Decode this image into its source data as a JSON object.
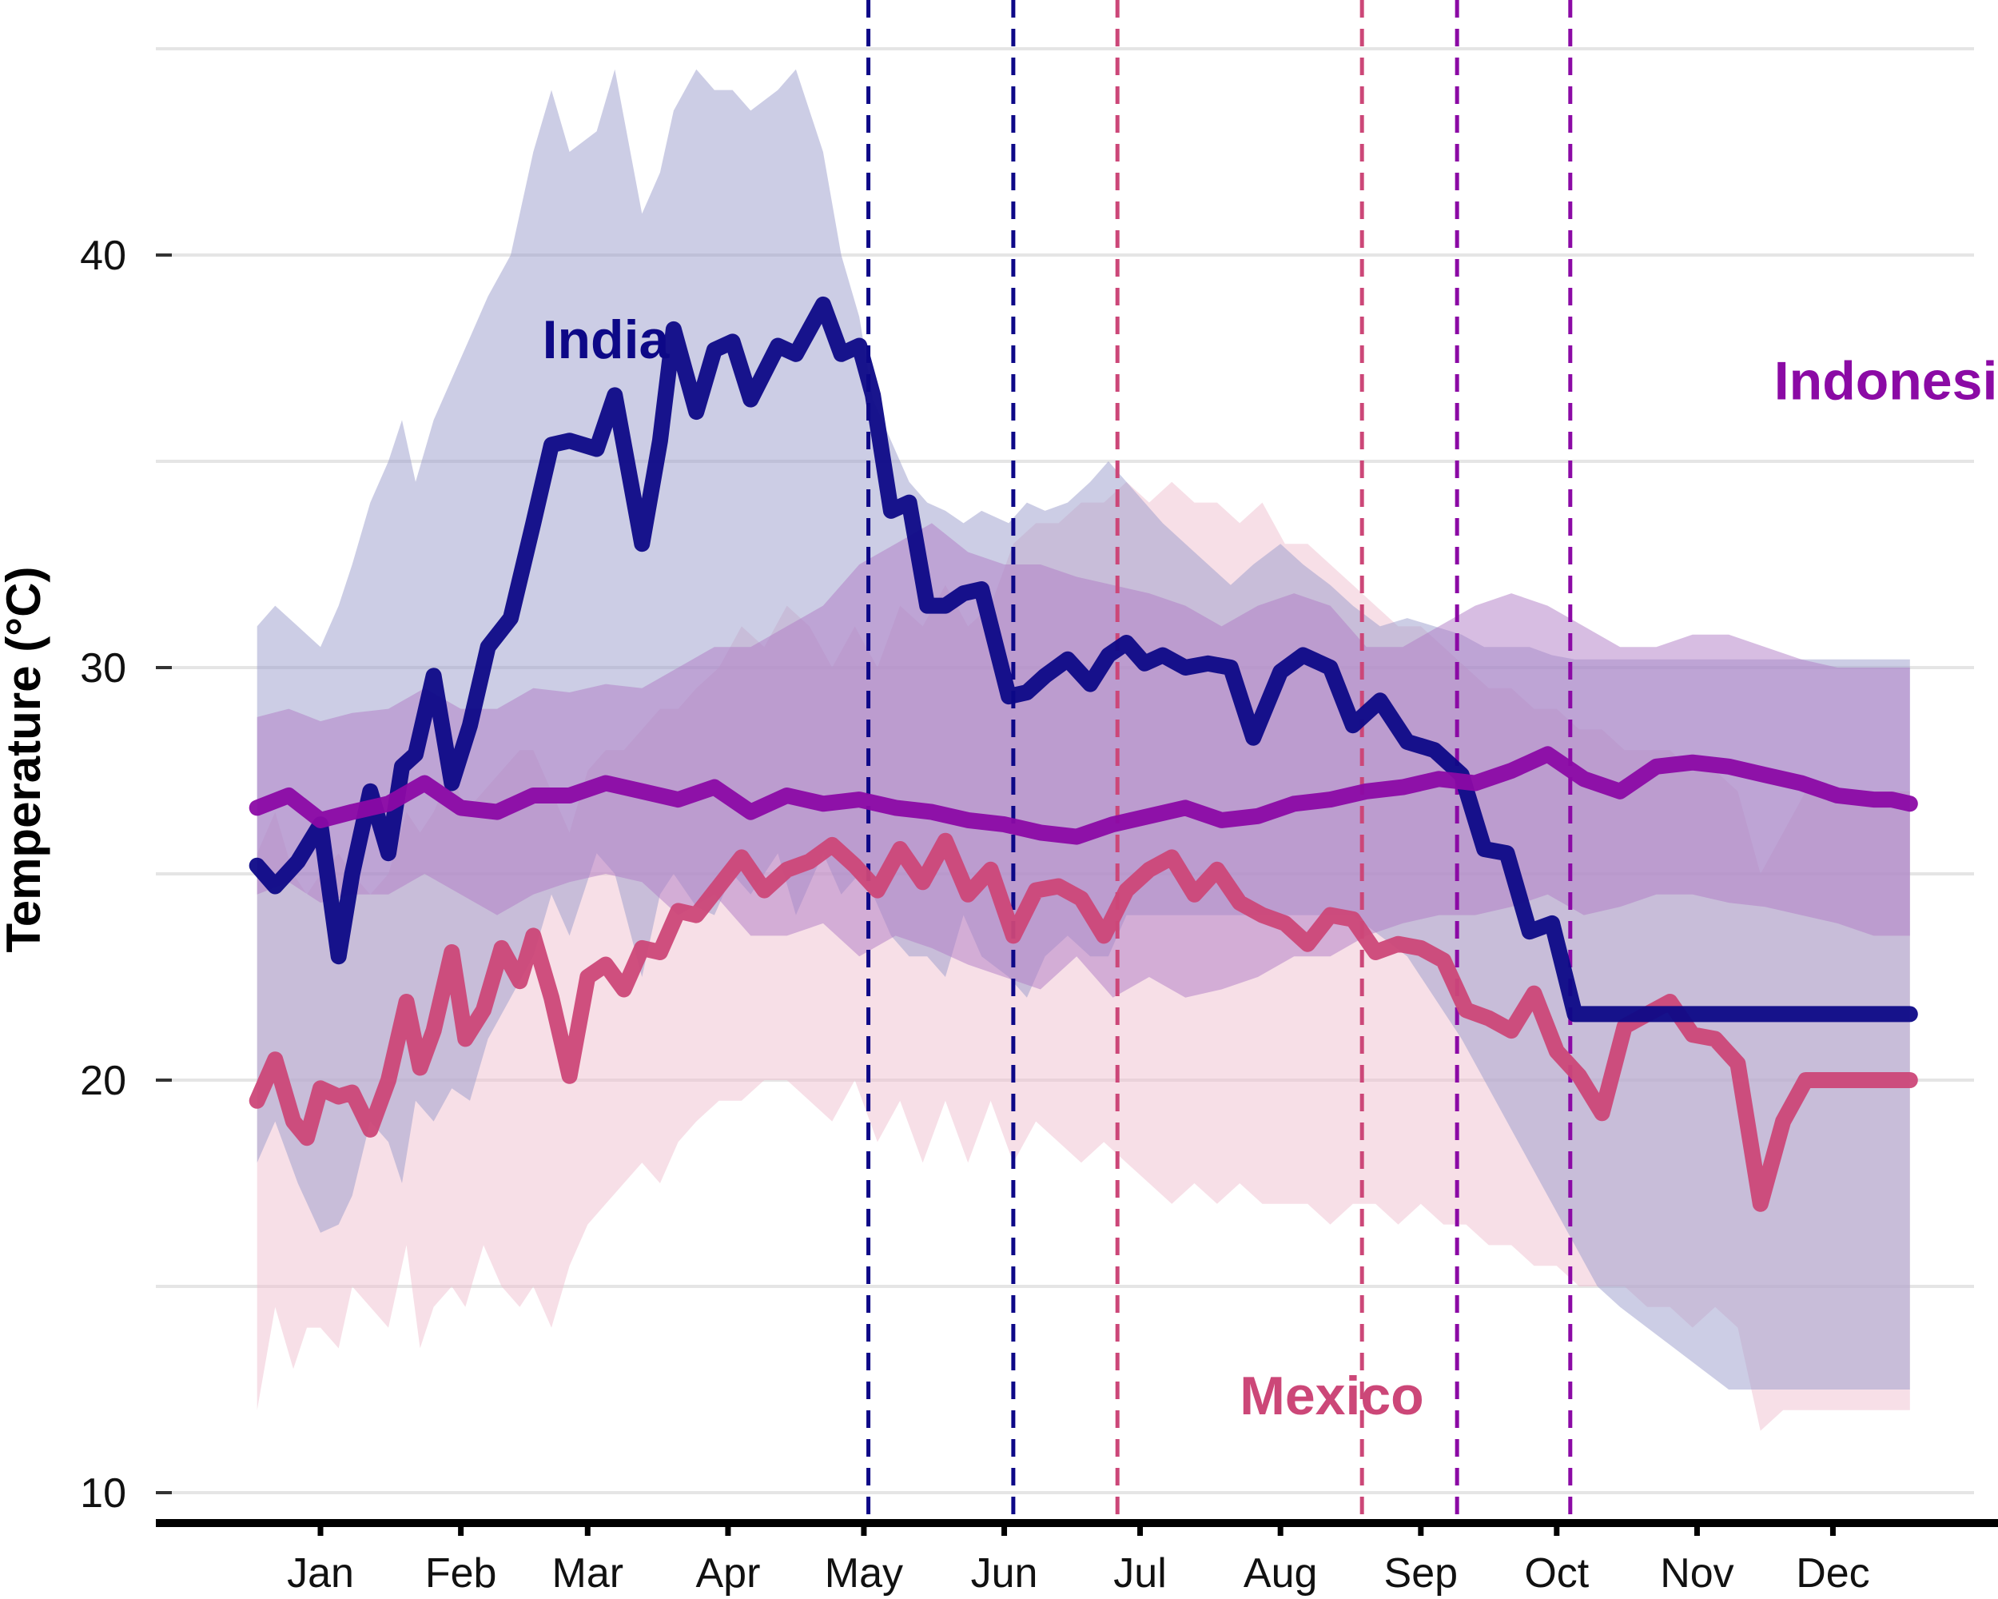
{
  "chart_data": {
    "type": "line",
    "ylabel": "Temperature (°C)",
    "xlabel": "",
    "ylim": [
      9.2,
      46
    ],
    "xlim": [
      0,
      366
    ],
    "yticks": [
      10,
      20,
      30,
      40
    ],
    "grid": "horizontal",
    "legend": "direct labels",
    "month_ticks": [
      {
        "label": "Jan",
        "day": 15
      },
      {
        "label": "Feb",
        "day": 46
      },
      {
        "label": "Mar",
        "day": 74
      },
      {
        "label": "Apr",
        "day": 105
      },
      {
        "label": "May",
        "day": 135
      },
      {
        "label": "Jun",
        "day": 166
      },
      {
        "label": "Jul",
        "day": 196
      },
      {
        "label": "Aug",
        "day": 227
      },
      {
        "label": "Sep",
        "day": 258
      },
      {
        "label": "Oct",
        "day": 288
      },
      {
        "label": "Nov",
        "day": 319
      },
      {
        "label": "Dec",
        "day": 349
      }
    ],
    "series": [
      {
        "name": "India",
        "color": "#0d0887",
        "band_color": "#9a9bcc",
        "label_day": 64,
        "label_value": 37.5,
        "vlines_day": [
          136,
          168
        ],
        "x": [
          1,
          5,
          10,
          15,
          19,
          22,
          26,
          30,
          33,
          36,
          40,
          44,
          48,
          52,
          57,
          62,
          66,
          70,
          76,
          80,
          86,
          90,
          93,
          98,
          102,
          106,
          110,
          116,
          120,
          126,
          130,
          134,
          137,
          141,
          145,
          149,
          153,
          157,
          161,
          167,
          171,
          175,
          180,
          185,
          189,
          193,
          197,
          201,
          206,
          211,
          216,
          221,
          227,
          232,
          238,
          243,
          249,
          255,
          261,
          267,
          272,
          277,
          282,
          287,
          292,
          297,
          302,
          308,
          314,
          320,
          326,
          333,
          338,
          343,
          348,
          353,
          358,
          362,
          366
        ],
        "y": [
          25.2,
          24.7,
          25.3,
          26.2,
          23.0,
          25.0,
          27.0,
          25.5,
          27.6,
          27.9,
          29.8,
          27.2,
          28.6,
          30.5,
          31.2,
          33.5,
          35.4,
          35.5,
          35.3,
          36.6,
          33.0,
          35.5,
          38.2,
          36.2,
          37.7,
          37.9,
          36.5,
          37.8,
          37.6,
          38.8,
          37.6,
          37.8,
          36.6,
          33.8,
          34.0,
          31.5,
          31.5,
          31.8,
          31.9,
          29.3,
          29.4,
          29.8,
          30.2,
          29.6,
          30.3,
          30.6,
          30.1,
          30.3,
          30.0,
          30.1,
          30.0,
          28.3,
          29.9,
          30.3,
          30.0,
          28.6,
          29.2,
          28.2,
          28.0,
          27.4,
          25.6,
          25.5,
          23.6,
          23.8,
          21.6,
          21.6,
          21.6,
          21.6,
          21.6,
          21.6,
          21.6,
          21.6,
          21.6,
          21.6,
          21.6,
          21.6,
          21.6,
          21.6,
          21.6
        ],
        "low": [
          18.0,
          19.0,
          17.5,
          16.3,
          16.5,
          17.2,
          19.0,
          18.5,
          17.5,
          19.5,
          19.0,
          19.8,
          19.5,
          21.0,
          22.0,
          23.0,
          24.5,
          23.5,
          25.5,
          25.0,
          22.5,
          24.5,
          25.0,
          24.2,
          24.0,
          25.0,
          24.5,
          25.5,
          24.0,
          25.5,
          24.5,
          25.0,
          24.5,
          23.5,
          23.0,
          23.0,
          22.5,
          24.0,
          23.0,
          22.5,
          22.0,
          23.0,
          23.5,
          23.0,
          23.0,
          24.0,
          24.0,
          24.0,
          24.0,
          24.0,
          24.0,
          24.0,
          24.0,
          24.0,
          24.0,
          24.0,
          23.5,
          23.0,
          22.0,
          21.0,
          20.0,
          19.0,
          18.0,
          17.0,
          16.0,
          15.0,
          14.5,
          14.0,
          13.5,
          13.0,
          12.5,
          12.5,
          12.5,
          12.5,
          12.5,
          12.5,
          12.5,
          12.5,
          12.5
        ],
        "high": [
          31.0,
          31.5,
          31.0,
          30.5,
          31.5,
          32.5,
          34.0,
          35.0,
          36.0,
          34.5,
          36.0,
          37.0,
          38.0,
          39.0,
          40.0,
          42.5,
          44.0,
          42.5,
          43.0,
          44.5,
          41.0,
          42.0,
          43.5,
          44.5,
          44.0,
          44.0,
          43.5,
          44.0,
          44.5,
          42.5,
          40.0,
          38.5,
          36.5,
          35.5,
          34.5,
          34.0,
          33.8,
          33.5,
          33.8,
          33.5,
          34.0,
          33.8,
          34.0,
          34.5,
          35.0,
          34.5,
          34.0,
          33.5,
          33.0,
          32.5,
          32.0,
          32.5,
          33.0,
          32.5,
          32.0,
          31.5,
          31.0,
          31.2,
          31.0,
          30.8,
          30.5,
          30.5,
          30.5,
          30.3,
          30.2,
          30.2,
          30.2,
          30.2,
          30.2,
          30.2,
          30.2,
          30.2,
          30.2,
          30.2,
          30.2,
          30.2,
          30.2,
          30.2,
          30.2
        ]
      },
      {
        "name": "Indonesia",
        "color": "#8b0aa5",
        "band_color": "#b07cc6",
        "label_day": 336,
        "label_value": 36.5,
        "vlines_day": [
          266,
          291
        ],
        "x": [
          1,
          8,
          15,
          22,
          30,
          38,
          46,
          54,
          62,
          70,
          78,
          86,
          94,
          102,
          110,
          118,
          126,
          134,
          142,
          150,
          158,
          166,
          174,
          182,
          190,
          198,
          206,
          214,
          222,
          230,
          238,
          246,
          254,
          262,
          270,
          278,
          286,
          294,
          302,
          310,
          318,
          326,
          334,
          342,
          350,
          358,
          362,
          366
        ],
        "y": [
          26.6,
          26.9,
          26.3,
          26.5,
          26.7,
          27.2,
          26.6,
          26.5,
          26.9,
          26.9,
          27.2,
          27.0,
          26.8,
          27.1,
          26.5,
          26.9,
          26.7,
          26.8,
          26.6,
          26.5,
          26.3,
          26.2,
          26.0,
          25.9,
          26.2,
          26.4,
          26.6,
          26.3,
          26.4,
          26.7,
          26.8,
          27.0,
          27.1,
          27.3,
          27.2,
          27.5,
          27.9,
          27.3,
          27.0,
          27.6,
          27.7,
          27.6,
          27.4,
          27.2,
          26.9,
          26.8,
          26.8,
          26.7
        ],
        "low": [
          24.5,
          24.8,
          24.3,
          24.5,
          24.5,
          25.0,
          24.5,
          24.0,
          24.5,
          24.8,
          25.0,
          24.8,
          24.0,
          24.5,
          23.5,
          23.5,
          23.8,
          23.0,
          23.5,
          23.2,
          22.8,
          22.5,
          22.2,
          23.0,
          22.0,
          22.5,
          22.0,
          22.2,
          22.5,
          23.0,
          23.0,
          23.5,
          23.8,
          24.0,
          24.0,
          24.2,
          24.5,
          24.0,
          24.2,
          24.5,
          24.5,
          24.3,
          24.2,
          24.0,
          23.8,
          23.5,
          23.5,
          23.5
        ],
        "high": [
          28.8,
          29.0,
          28.7,
          28.9,
          29.0,
          29.5,
          29.0,
          29.0,
          29.5,
          29.4,
          29.6,
          29.5,
          30.0,
          30.5,
          30.5,
          31.0,
          31.5,
          32.5,
          33.0,
          33.5,
          32.8,
          32.5,
          32.5,
          32.2,
          32.0,
          31.8,
          31.5,
          31.0,
          31.5,
          31.8,
          31.5,
          30.5,
          30.5,
          31.0,
          31.5,
          31.8,
          31.5,
          31.0,
          30.5,
          30.5,
          30.8,
          30.8,
          30.5,
          30.2,
          30.0,
          30.0,
          30.0,
          30.0
        ]
      },
      {
        "name": "Mexico",
        "color": "#cc4778",
        "band_color": "#f0bfd0",
        "label_day": 218,
        "label_value": 11.9,
        "vlines_day": [
          191,
          245
        ],
        "x": [
          1,
          5,
          9,
          12,
          15,
          19,
          22,
          26,
          30,
          34,
          37,
          40,
          44,
          47,
          51,
          55,
          59,
          62,
          66,
          70,
          74,
          78,
          82,
          86,
          90,
          94,
          98,
          103,
          108,
          113,
          118,
          123,
          128,
          133,
          138,
          143,
          148,
          153,
          158,
          163,
          168,
          173,
          178,
          183,
          188,
          193,
          198,
          203,
          208,
          213,
          218,
          223,
          228,
          233,
          238,
          243,
          248,
          253,
          258,
          263,
          268,
          273,
          278,
          283,
          288,
          293,
          298,
          303,
          308,
          313,
          318,
          323,
          328,
          333,
          338,
          343,
          348,
          353,
          357,
          361,
          366
        ],
        "y": [
          19.5,
          20.5,
          19.0,
          18.6,
          19.8,
          19.6,
          19.7,
          18.8,
          20.0,
          21.9,
          20.3,
          21.2,
          23.1,
          21.0,
          21.7,
          23.2,
          22.4,
          23.5,
          22.0,
          20.1,
          22.5,
          22.8,
          22.2,
          23.2,
          23.1,
          24.1,
          24.0,
          24.7,
          25.4,
          24.6,
          25.1,
          25.3,
          25.7,
          25.2,
          24.6,
          25.6,
          24.8,
          25.8,
          24.5,
          25.1,
          23.5,
          24.6,
          24.7,
          24.4,
          23.5,
          24.6,
          25.1,
          25.4,
          24.5,
          25.1,
          24.3,
          24.0,
          23.8,
          23.3,
          24.0,
          23.9,
          23.1,
          23.3,
          23.2,
          22.9,
          21.7,
          21.5,
          21.2,
          22.1,
          20.7,
          20.1,
          19.2,
          21.3,
          21.6,
          21.9,
          21.1,
          21.0,
          20.4,
          17.0,
          19.0,
          20.0,
          20.0,
          20.0,
          20.0,
          20.0,
          20.0
        ],
        "low": [
          12.0,
          14.5,
          13.0,
          14.0,
          14.0,
          13.5,
          15.0,
          14.5,
          14.0,
          16.0,
          13.5,
          14.5,
          15.0,
          14.5,
          16.0,
          15.0,
          14.5,
          15.0,
          14.0,
          15.5,
          16.5,
          17.0,
          17.5,
          18.0,
          17.5,
          18.5,
          19.0,
          19.5,
          19.5,
          20.0,
          20.0,
          19.5,
          19.0,
          20.0,
          18.5,
          19.5,
          18.0,
          19.5,
          18.0,
          19.5,
          18.0,
          19.0,
          18.5,
          18.0,
          18.5,
          18.0,
          17.5,
          17.0,
          17.5,
          17.0,
          17.5,
          17.0,
          17.0,
          17.0,
          16.5,
          17.0,
          17.0,
          16.5,
          17.0,
          16.5,
          16.5,
          16.0,
          16.0,
          15.5,
          15.5,
          15.0,
          15.0,
          15.0,
          14.5,
          14.5,
          14.0,
          14.5,
          14.0,
          11.5,
          12.0,
          12.0,
          12.0,
          12.0,
          12.0,
          12.0,
          12.0
        ],
        "high": [
          25.5,
          26.5,
          25.0,
          24.5,
          25.0,
          25.5,
          25.0,
          24.5,
          25.0,
          26.5,
          26.0,
          26.5,
          27.5,
          26.5,
          27.0,
          27.5,
          28.0,
          28.0,
          27.0,
          26.0,
          27.5,
          28.0,
          28.0,
          28.5,
          29.0,
          29.0,
          29.5,
          30.0,
          31.0,
          30.5,
          31.5,
          31.0,
          30.0,
          31.0,
          30.0,
          31.5,
          31.0,
          32.0,
          31.0,
          31.5,
          33.0,
          33.5,
          33.5,
          34.0,
          34.0,
          34.5,
          34.0,
          34.5,
          34.0,
          34.0,
          33.5,
          34.0,
          33.0,
          33.0,
          32.5,
          32.0,
          31.5,
          31.0,
          31.0,
          30.5,
          30.0,
          29.5,
          29.5,
          29.0,
          29.0,
          28.5,
          28.5,
          28.0,
          28.0,
          28.0,
          27.5,
          27.5,
          27.0,
          25.0,
          26.0,
          27.0,
          27.0,
          27.0,
          27.0,
          27.0,
          27.0
        ]
      }
    ]
  }
}
